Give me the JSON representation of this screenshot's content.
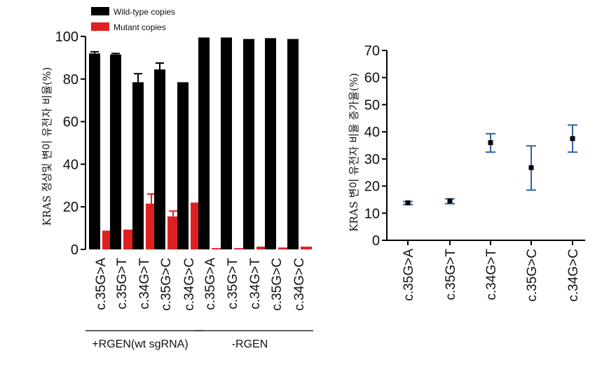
{
  "chart_data": [
    {
      "type": "bar",
      "ylabel": "KRAS 정상및 변이 유전자 비율(%)",
      "ylim": [
        0,
        100
      ],
      "yticks": [
        0,
        20,
        40,
        60,
        80,
        100
      ],
      "legend": {
        "placement": "top-left"
      },
      "categories": [
        "c.35G>A",
        "c.35G>T",
        "c.34G>T",
        "c.35G>C",
        "c.34G>C",
        "c.35G>A",
        "c.35G>T",
        "c.34G>T",
        "c.35G>C",
        "c.34G>C"
      ],
      "groups": [
        {
          "label": "+RGEN(wt sgRNA)",
          "categories_index": [
            0,
            4
          ]
        },
        {
          "label": "-RGEN",
          "categories_index": [
            5,
            9
          ]
        }
      ],
      "series": [
        {
          "name": "Wild-type copies",
          "color": "#000000",
          "values": [
            92,
            91.5,
            78.5,
            84.5,
            78.5,
            99.5,
            99.5,
            98.8,
            99.2,
            98.8
          ],
          "errors": [
            0.8,
            0.5,
            4,
            3,
            0,
            0,
            0,
            0,
            0,
            0
          ]
        },
        {
          "name": "Mutant copies",
          "color": "#e02020",
          "values": [
            8.8,
            9.3,
            21.5,
            15.5,
            22,
            0.6,
            0.6,
            1.3,
            0.9,
            1.3
          ],
          "errors": [
            0,
            0,
            4.5,
            2.5,
            0,
            0,
            0,
            0,
            0,
            0
          ]
        }
      ]
    },
    {
      "type": "scatter",
      "ylabel": "KRAS 변이 유전자 비율 증가율(%)",
      "ylim": [
        0,
        70
      ],
      "yticks": [
        0,
        10,
        20,
        30,
        40,
        50,
        60,
        70
      ],
      "categories": [
        "c.35G>A",
        "c.35G>T",
        "c.34G>T",
        "c.35G>C",
        "c.34G>C"
      ],
      "marker_color": "#000000",
      "errorbar_color": "#3060a8",
      "values": [
        13.8,
        14.5,
        36,
        26.8,
        37.5
      ],
      "err_low": [
        13.2,
        13.5,
        32.5,
        18.5,
        32.5
      ],
      "err_high": [
        14.3,
        15.3,
        39.3,
        34.8,
        42.5
      ]
    }
  ]
}
